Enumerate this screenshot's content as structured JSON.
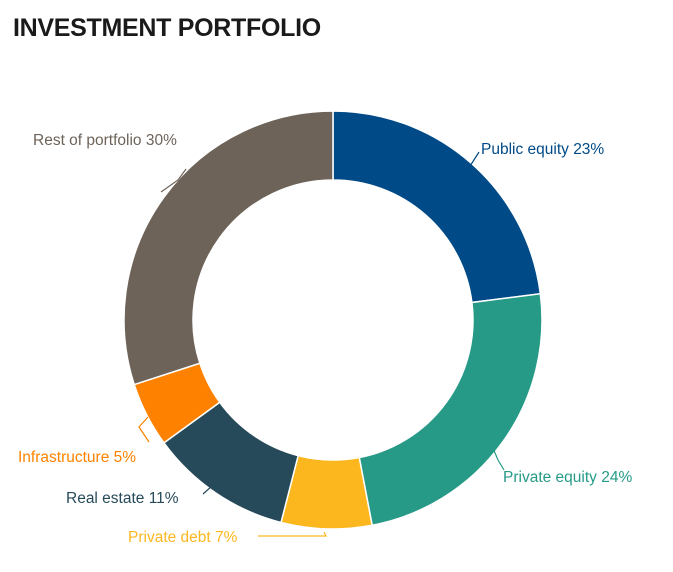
{
  "chart_data": {
    "type": "pie",
    "title": "INVESTMENT PORTFOLIO",
    "slices": [
      {
        "label": "Public equity",
        "value": 23,
        "value_label": "23%",
        "color": "#004a87"
      },
      {
        "label": "Private equity",
        "value": 24,
        "value_label": "24%",
        "color": "#269a87"
      },
      {
        "label": "Private debt",
        "value": 7,
        "value_label": "7%",
        "color": "#fdb71e"
      },
      {
        "label": "Real estate",
        "value": 11,
        "value_label": "11%",
        "color": "#264a5a"
      },
      {
        "label": "Infrastructure",
        "value": 5,
        "value_label": "5%",
        "color": "#fe8200"
      },
      {
        "label": "Rest of portfolio",
        "value": 30,
        "value_label": "30%",
        "color": "#6e6359"
      }
    ]
  }
}
